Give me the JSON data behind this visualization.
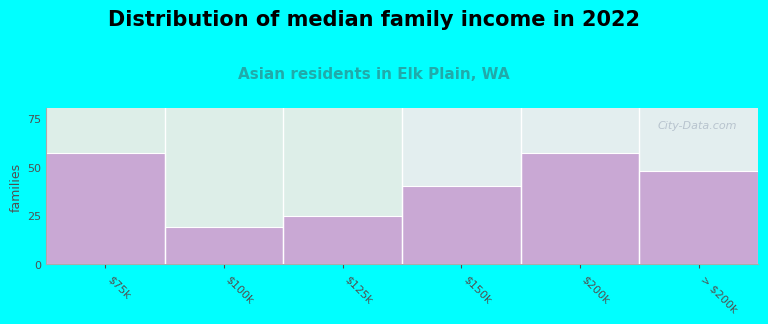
{
  "title": "Distribution of median family income in 2022",
  "subtitle": "Asian residents in Elk Plain, WA",
  "ylabel": "families",
  "categories": [
    "$75k",
    "$100k",
    "$125k",
    "$150k",
    "$200k",
    "> $200k"
  ],
  "values": [
    57,
    19,
    25,
    40,
    57,
    48
  ],
  "bar_color": "#c9a8d4",
  "step_fill_color_left": "#e0f0e8",
  "step_fill_color_right": "#e8eef4",
  "background_color": "#00ffff",
  "plot_bg_color": "#ffffff",
  "title_fontsize": 15,
  "subtitle_fontsize": 11,
  "subtitle_color": "#20aaaa",
  "ylabel_fontsize": 9,
  "tick_fontsize": 8,
  "ylim": [
    0,
    80
  ],
  "yticks": [
    0,
    25,
    50,
    75
  ],
  "watermark": "City-Data.com",
  "watermark_color": "#b0bcc8"
}
